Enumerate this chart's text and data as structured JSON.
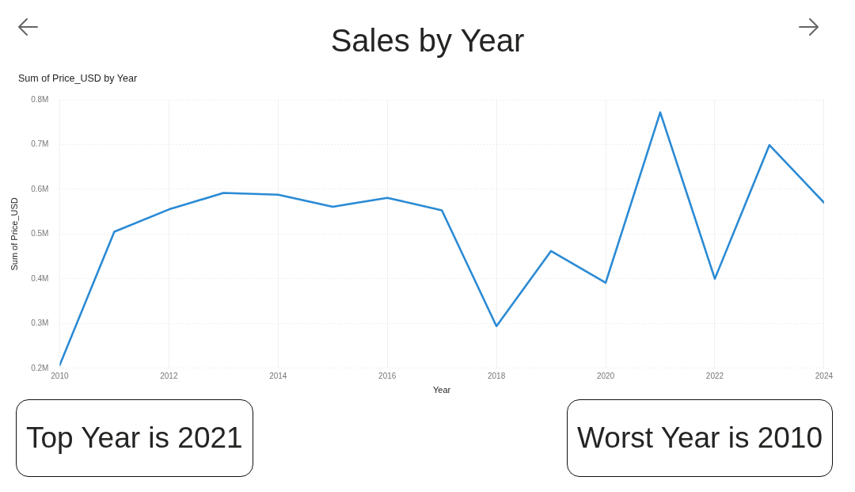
{
  "chart_data": {
    "type": "line",
    "title": "Sales by Year",
    "subtitle": "Sum of Price_USD by Year",
    "xlabel": "Year",
    "ylabel": "Sum of Price_USD",
    "x": [
      2010,
      2011,
      2012,
      2013,
      2014,
      2015,
      2016,
      2017,
      2018,
      2019,
      2020,
      2021,
      2022,
      2023,
      2024
    ],
    "series": [
      {
        "color": "#2a8ad4",
        "values": [
          0.207,
          0.505,
          0.555,
          0.592,
          0.588,
          0.561,
          0.581,
          0.553,
          0.294,
          0.462,
          0.391,
          0.772,
          0.4,
          0.699,
          0.57
        ]
      }
    ],
    "xlim": [
      2010,
      2024
    ],
    "xticks": [
      2010,
      2012,
      2014,
      2016,
      2018,
      2020,
      2022,
      2024
    ],
    "ylim": [
      0.2,
      0.8
    ],
    "yticks": [
      {
        "value": 0.2,
        "label": "0.2M"
      },
      {
        "value": 0.3,
        "label": "0.3M"
      },
      {
        "value": 0.4,
        "label": "0.4M"
      },
      {
        "value": 0.5,
        "label": "0.5M"
      },
      {
        "value": 0.6,
        "label": "0.6M"
      },
      {
        "value": 0.7,
        "label": "0.7M"
      },
      {
        "value": 0.8,
        "label": "0.8M"
      }
    ],
    "grid": true,
    "marker": "none",
    "line_style": "solid",
    "annotations": [
      "Top Year is 2021",
      "Worst Year is 2010"
    ]
  }
}
